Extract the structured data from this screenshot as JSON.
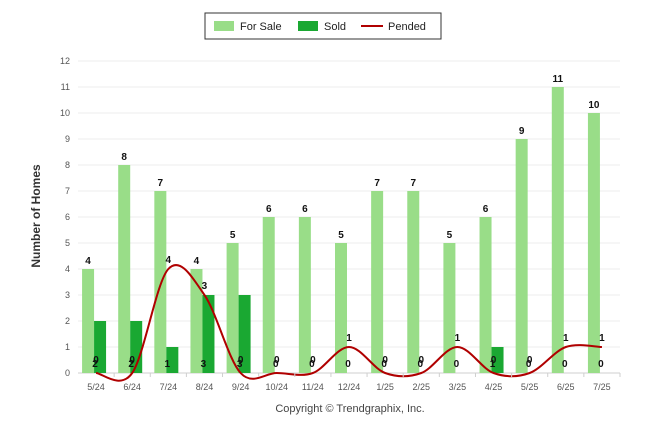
{
  "chart_data": {
    "type": "bar",
    "categories": [
      "5/24",
      "6/24",
      "7/24",
      "8/24",
      "9/24",
      "10/24",
      "11/24",
      "12/24",
      "1/25",
      "2/25",
      "3/25",
      "4/25",
      "5/25",
      "6/25",
      "7/25"
    ],
    "series": [
      {
        "name": "For Sale",
        "type": "bar",
        "values": [
          4,
          8,
          7,
          4,
          5,
          6,
          6,
          5,
          7,
          7,
          5,
          6,
          9,
          11,
          10
        ]
      },
      {
        "name": "Sold",
        "type": "bar",
        "values": [
          2,
          2,
          1,
          3,
          3,
          0,
          0,
          0,
          0,
          0,
          0,
          1,
          0,
          0,
          0
        ]
      },
      {
        "name": "Pended",
        "type": "line",
        "values": [
          0,
          0,
          4,
          3,
          0,
          0,
          0,
          1,
          0,
          0,
          1,
          0,
          0,
          1,
          1
        ]
      }
    ],
    "ylabel": "Number of Homes",
    "xlabel": "",
    "ylim": [
      0,
      12
    ],
    "yticks": [
      0,
      1,
      2,
      3,
      4,
      5,
      6,
      7,
      8,
      9,
      10,
      11,
      12
    ],
    "grid": true,
    "legend": "top-center",
    "colors": {
      "for_sale": "#99dd88",
      "sold": "#1aa832",
      "pended": "#b00000"
    },
    "footer": "Copyright © Trendgraphix, Inc."
  }
}
